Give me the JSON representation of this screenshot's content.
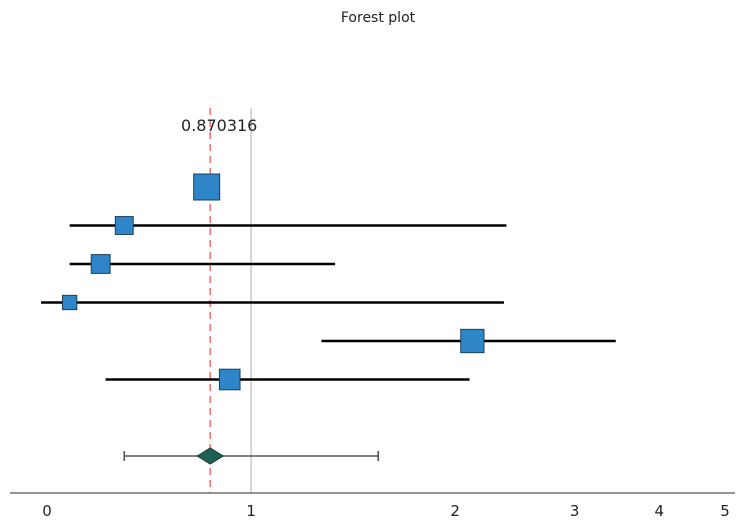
{
  "chart_data": {
    "type": "forest",
    "title": "Forest plot",
    "x_scale": "log",
    "x_ticks": [
      {
        "value": 0.5,
        "label": "0"
      },
      {
        "value": 1,
        "label": "1"
      },
      {
        "value": 2,
        "label": "2"
      },
      {
        "value": 3,
        "label": "3"
      },
      {
        "value": 4,
        "label": "4"
      },
      {
        "value": 5,
        "label": "5"
      }
    ],
    "reference_line": 1,
    "pooled_line_label": "0.870316",
    "studies": [
      {
        "estimate": 0.86,
        "ci_low": 0.83,
        "ci_high": 0.89,
        "weight": 1.0
      },
      {
        "estimate": 0.65,
        "ci_low": 0.54,
        "ci_high": 2.38,
        "weight": 0.55
      },
      {
        "estimate": 0.6,
        "ci_low": 0.54,
        "ci_high": 1.33,
        "weight": 0.6
      },
      {
        "estimate": 0.54,
        "ci_low": 0.49,
        "ci_high": 2.36,
        "weight": 0.35
      },
      {
        "estimate": 2.12,
        "ci_low": 1.27,
        "ci_high": 3.45,
        "weight": 0.85
      },
      {
        "estimate": 0.93,
        "ci_low": 0.61,
        "ci_high": 2.1,
        "weight": 0.7
      }
    ],
    "pooled": {
      "estimate": 0.870316,
      "ci_low": 0.65,
      "ci_high": 1.54
    },
    "colors": {
      "marker": "#2e86c8",
      "marker_edge": "#1a3f5c",
      "ci_line": "#000000",
      "pooled_diamond": "#1f5f54",
      "pooled_line": "#ee7777",
      "reference_line": "#c8c8c8",
      "axis": "#555555"
    }
  }
}
